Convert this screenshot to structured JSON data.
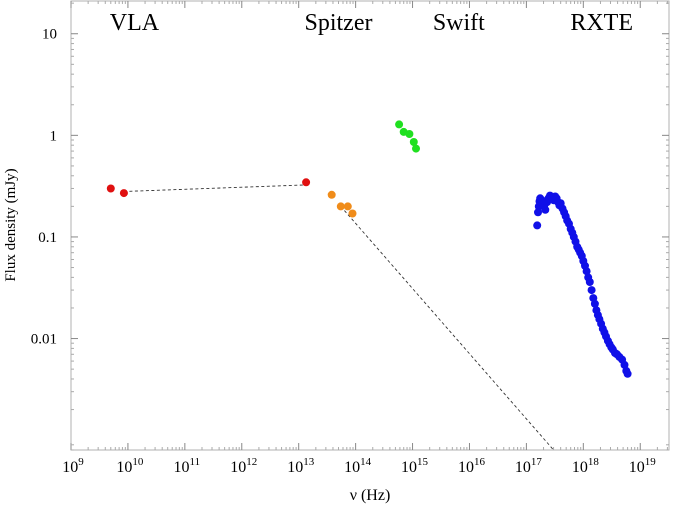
{
  "chart_data": {
    "type": "scatter",
    "xlabel": "ν (Hz)",
    "ylabel": "Flux density (mJy)",
    "x_scale": "log",
    "y_scale": "log",
    "xlim": [
      1000000000.0,
      3.2e+19
    ],
    "ylim": [
      0.0008,
      21
    ],
    "x_ticks": [
      {
        "value": 1000000000.0,
        "base": "10",
        "exp": "9"
      },
      {
        "value": 10000000000.0,
        "base": "10",
        "exp": "10"
      },
      {
        "value": 100000000000.0,
        "base": "10",
        "exp": "11"
      },
      {
        "value": 1000000000000.0,
        "base": "10",
        "exp": "12"
      },
      {
        "value": 10000000000000.0,
        "base": "10",
        "exp": "13"
      },
      {
        "value": 100000000000000.0,
        "base": "10",
        "exp": "14"
      },
      {
        "value": 1000000000000000.0,
        "base": "10",
        "exp": "15"
      },
      {
        "value": 1e+16,
        "base": "10",
        "exp": "16"
      },
      {
        "value": 1e+17,
        "base": "10",
        "exp": "17"
      },
      {
        "value": 1e+18,
        "base": "10",
        "exp": "18"
      },
      {
        "value": 1e+19,
        "base": "10",
        "exp": "19"
      }
    ],
    "y_ticks": [
      {
        "value": 10,
        "label": "10"
      },
      {
        "value": 1,
        "label": "1"
      },
      {
        "value": 0.1,
        "label": "0.1"
      },
      {
        "value": 0.01,
        "label": "0.01"
      }
    ],
    "annotations": [
      {
        "text": "VLA",
        "x": 13000000000.0
      },
      {
        "text": "Spitzer",
        "x": 50000000000000.0
      },
      {
        "text": "Swift",
        "x": 6500000000000000.0
      },
      {
        "text": "RXTE",
        "x": 2.1e+18
      }
    ],
    "series": [
      {
        "color": "#e01010",
        "points": [
          [
            5000000000.0,
            0.3
          ],
          [
            8500000000.0,
            0.27
          ],
          [
            13500000000000.0,
            0.345
          ]
        ]
      },
      {
        "color": "#f08c1a",
        "points": [
          [
            38000000000000.0,
            0.26
          ],
          [
            55000000000000.0,
            0.2
          ],
          [
            73000000000000.0,
            0.2
          ],
          [
            88000000000000.0,
            0.17
          ]
        ]
      },
      {
        "color": "#20e020",
        "points": [
          [
            580000000000000.0,
            1.28
          ],
          [
            700000000000000.0,
            1.08
          ],
          [
            880000000000000.0,
            1.03
          ],
          [
            1050000000000000.0,
            0.86
          ],
          [
            1150000000000000.0,
            0.74
          ]
        ]
      },
      {
        "color": "#1010e8",
        "points": [
          [
            1.55e+17,
            0.13
          ],
          [
            1.6e+17,
            0.175
          ],
          [
            1.65e+17,
            0.2
          ],
          [
            1.7e+17,
            0.225
          ],
          [
            1.75e+17,
            0.24
          ],
          [
            1.85e+17,
            0.23
          ],
          [
            1.95e+17,
            0.215
          ],
          [
            2.05e+17,
            0.2
          ],
          [
            2.15e+17,
            0.185
          ],
          [
            2.3e+17,
            0.22
          ],
          [
            2.45e+17,
            0.24
          ],
          [
            2.6e+17,
            0.255
          ],
          [
            2.8e+17,
            0.245
          ],
          [
            3e+17,
            0.23
          ],
          [
            3.2e+17,
            0.25
          ],
          [
            3.4e+17,
            0.24
          ],
          [
            3.6e+17,
            0.22
          ],
          [
            3.8e+17,
            0.205
          ],
          [
            4e+17,
            0.215
          ],
          [
            4.3e+17,
            0.19
          ],
          [
            4.6e+17,
            0.175
          ],
          [
            4.9e+17,
            0.16
          ],
          [
            5.2e+17,
            0.145
          ],
          [
            5.6e+17,
            0.135
          ],
          [
            6e+17,
            0.12
          ],
          [
            6.4e+17,
            0.11
          ],
          [
            6.8e+17,
            0.1
          ],
          [
            7.3e+17,
            0.09
          ],
          [
            7.8e+17,
            0.08
          ],
          [
            8.3e+17,
            0.075
          ],
          [
            8.8e+17,
            0.07
          ],
          [
            9.4e+17,
            0.065
          ],
          [
            1e+18,
            0.058
          ],
          [
            1.07e+18,
            0.052
          ],
          [
            1.14e+18,
            0.046
          ],
          [
            1.22e+18,
            0.04
          ],
          [
            1.3e+18,
            0.036
          ],
          [
            1.4e+18,
            0.03
          ],
          [
            1.5e+18,
            0.025
          ],
          [
            1.6e+18,
            0.022
          ],
          [
            1.7e+18,
            0.019
          ],
          [
            1.8e+18,
            0.017
          ],
          [
            1.92e+18,
            0.0155
          ],
          [
            2.05e+18,
            0.014
          ],
          [
            2.2e+18,
            0.0125
          ],
          [
            2.35e+18,
            0.0115
          ],
          [
            2.5e+18,
            0.0105
          ],
          [
            2.7e+18,
            0.0095
          ],
          [
            2.9e+18,
            0.0088
          ],
          [
            3.1e+18,
            0.0082
          ],
          [
            3.3e+18,
            0.0078
          ],
          [
            3.6e+18,
            0.0072
          ],
          [
            3.9e+18,
            0.007
          ],
          [
            4.3e+18,
            0.0066
          ],
          [
            4.8e+18,
            0.0062
          ],
          [
            5.3e+18,
            0.0055
          ],
          [
            5.7e+18,
            0.0048
          ],
          [
            6e+18,
            0.0045
          ]
        ]
      }
    ],
    "lines": [
      {
        "style": "dashed",
        "points": [
          [
            8500000000.0,
            0.28
          ],
          [
            13500000000000.0,
            0.325
          ]
        ]
      },
      {
        "style": "dashed",
        "points": [
          [
            55000000000000.0,
            0.2
          ],
          [
            3e+17,
            0.0008
          ]
        ]
      }
    ]
  }
}
